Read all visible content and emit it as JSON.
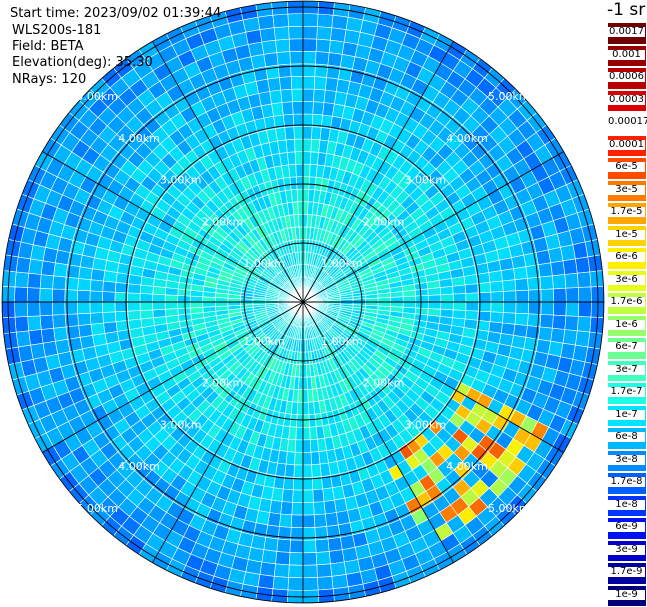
{
  "header": {
    "start_time": "Start time: 2023/09/02 01:39:44",
    "instrument": "WLS200s-181",
    "field": "Field: BETA",
    "elevation": "Elevation(deg): 35.30",
    "nrays": "NRays: 120"
  },
  "colorbar": {
    "unit_label": "-1 sr",
    "ticks": [
      "0.0017",
      "0.001",
      "0.0006",
      "0.0003",
      "0.00017",
      "0.0001",
      "6e-5",
      "3e-5",
      "1.7e-5",
      "1e-5",
      "6e-6",
      "3e-6",
      "1.7e-6",
      "1e-6",
      "6e-7",
      "3e-7",
      "1.7e-7",
      "1e-7",
      "6e-8",
      "3e-8",
      "1.7e-8",
      "1e-8",
      "6e-9",
      "3e-9",
      "1.7e-9",
      "1e-9"
    ],
    "colors": [
      "#700000",
      "#940000",
      "#b80000",
      "#dc0000",
      "#ffffff",
      "#ff2000",
      "#ff4a00",
      "#ff7a00",
      "#ffa600",
      "#ffd200",
      "#fff000",
      "#e6ff1a",
      "#c0ff3e",
      "#96ff69",
      "#6cff92",
      "#40ffbf",
      "#1cffe4",
      "#00e4ff",
      "#00b8ff",
      "#008cff",
      "#0060ff",
      "#0034ff",
      "#0010f0",
      "#0000c8",
      "#00009e",
      "#000078"
    ]
  },
  "chart_data": {
    "type": "heatmap",
    "projection": "polar PPI (plan position indicator)",
    "field": "BETA",
    "units": "sr^-1",
    "n_rays": 120,
    "range_ring_labels": [
      "1.00km",
      "2.00km",
      "3.00km",
      "4.00km",
      "5.00km"
    ],
    "range_rings_km": [
      1,
      2,
      3,
      4,
      5
    ],
    "max_range_km": 5.1,
    "azimuth_spokes_deg": [
      0,
      30,
      60,
      90,
      120,
      150,
      180,
      210,
      240,
      270,
      300,
      330
    ],
    "dominant_values": {
      "inner_1_to_2km": "1.7e-7 to 6e-7",
      "outer_3_to_5km": "1e-8 to 1e-7",
      "southeast_patch_3_to_5km_az_120_to_150": "1e-6 to 1.7e-5"
    }
  }
}
